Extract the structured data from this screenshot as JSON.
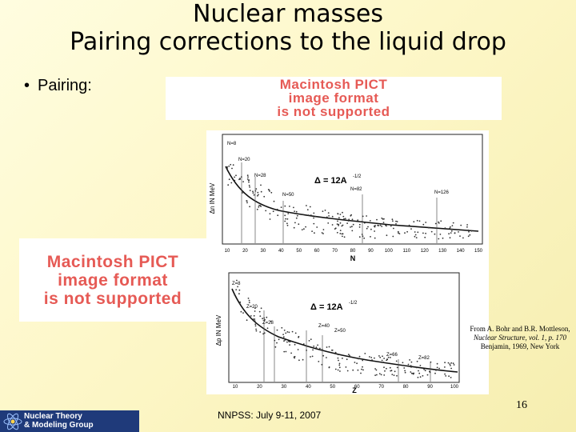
{
  "title": {
    "line1": "Nuclear masses",
    "line2": "Pairing corrections to the liquid drop"
  },
  "bullet": {
    "marker": "•",
    "text": "Pairing:"
  },
  "placeholders": {
    "pict1": {
      "line1": "Macintosh PICT",
      "line2": "image format",
      "line3": "is not supported"
    },
    "pict2": {
      "line1": "Macintosh PICT",
      "line2": "image format",
      "line3": "is not supported"
    }
  },
  "figure": {
    "top_panel": {
      "ylabel": "Δn IN MeV",
      "xlabel": "N",
      "formula": "Δ = 12A",
      "exponent": "-1/2",
      "xticks": [
        "10",
        "20",
        "30",
        "40",
        "50",
        "60",
        "70",
        "80",
        "90",
        "100",
        "110",
        "120",
        "130",
        "140",
        "150"
      ],
      "annotations": [
        "N=8",
        "N=20",
        "N=28",
        "N=50",
        "N=82",
        "N=126"
      ]
    },
    "bottom_panel": {
      "ylabel": "Δp IN MeV",
      "xlabel": "Z",
      "formula": "Δ = 12A",
      "exponent": "-1/2",
      "xticks": [
        "10",
        "20",
        "30",
        "40",
        "50",
        "60",
        "70",
        "80",
        "90",
        "100"
      ],
      "annotations": [
        "Z=8",
        "Z=20",
        "Z=28",
        "Z=40",
        "Z=50",
        "Z=66",
        "Z=82"
      ]
    }
  },
  "credit": {
    "line1": "From A. Bohr and B.R. Mottleson,",
    "line2": "Nuclear Structure, vol. 1, p. 170",
    "line3": "Benjamin, 1969, New York"
  },
  "page_number": "16",
  "footer": "NNPSS: July 9-11, 2007",
  "logo": {
    "line1": "Nuclear Theory",
    "line2": "& Modeling Group",
    "color": "#1f3a7a"
  },
  "colors": {
    "placeholder_text": "#e65a55"
  }
}
